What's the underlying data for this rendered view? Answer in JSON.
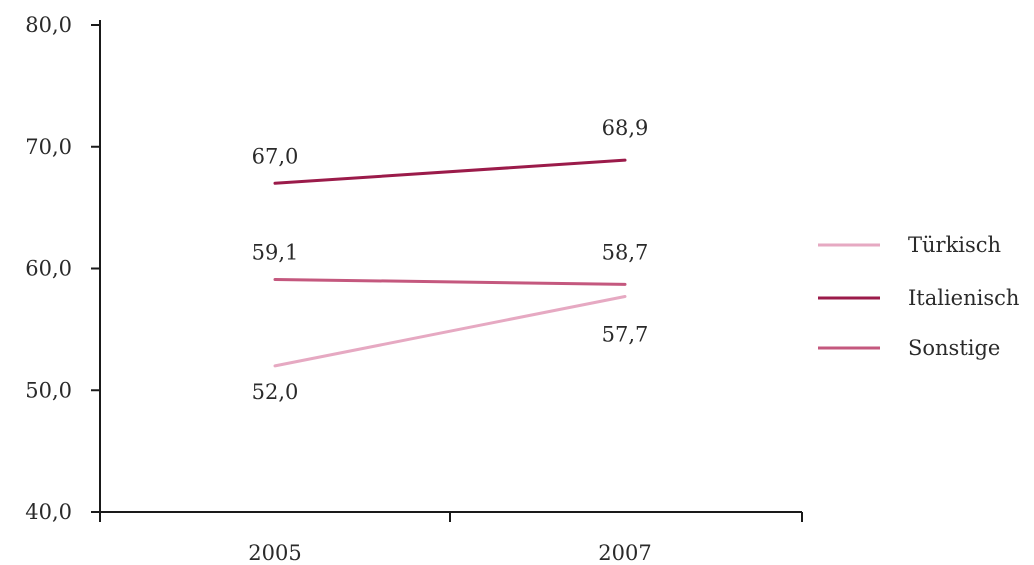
{
  "chart_data": {
    "type": "line",
    "title": "",
    "xlabel": "",
    "ylabel": "",
    "categories": [
      "2005",
      "2007"
    ],
    "ylim": [
      40.0,
      80.0
    ],
    "y_ticks": [
      "40,0",
      "50,0",
      "60,0",
      "70,0",
      "80,0"
    ],
    "grid": false,
    "legend_position": "right",
    "series": [
      {
        "name": "Türkisch",
        "values": [
          52.0,
          57.7
        ],
        "labels": [
          "52,0",
          "57,7"
        ],
        "color": "#e6a9c2"
      },
      {
        "name": "Italienisch",
        "values": [
          67.0,
          68.9
        ],
        "labels": [
          "67,0",
          "68,9"
        ],
        "color": "#9b1b4a"
      },
      {
        "name": "Sonstige",
        "values": [
          59.1,
          58.7
        ],
        "labels": [
          "59,1",
          "58,7"
        ],
        "color": "#c4587e"
      }
    ]
  }
}
